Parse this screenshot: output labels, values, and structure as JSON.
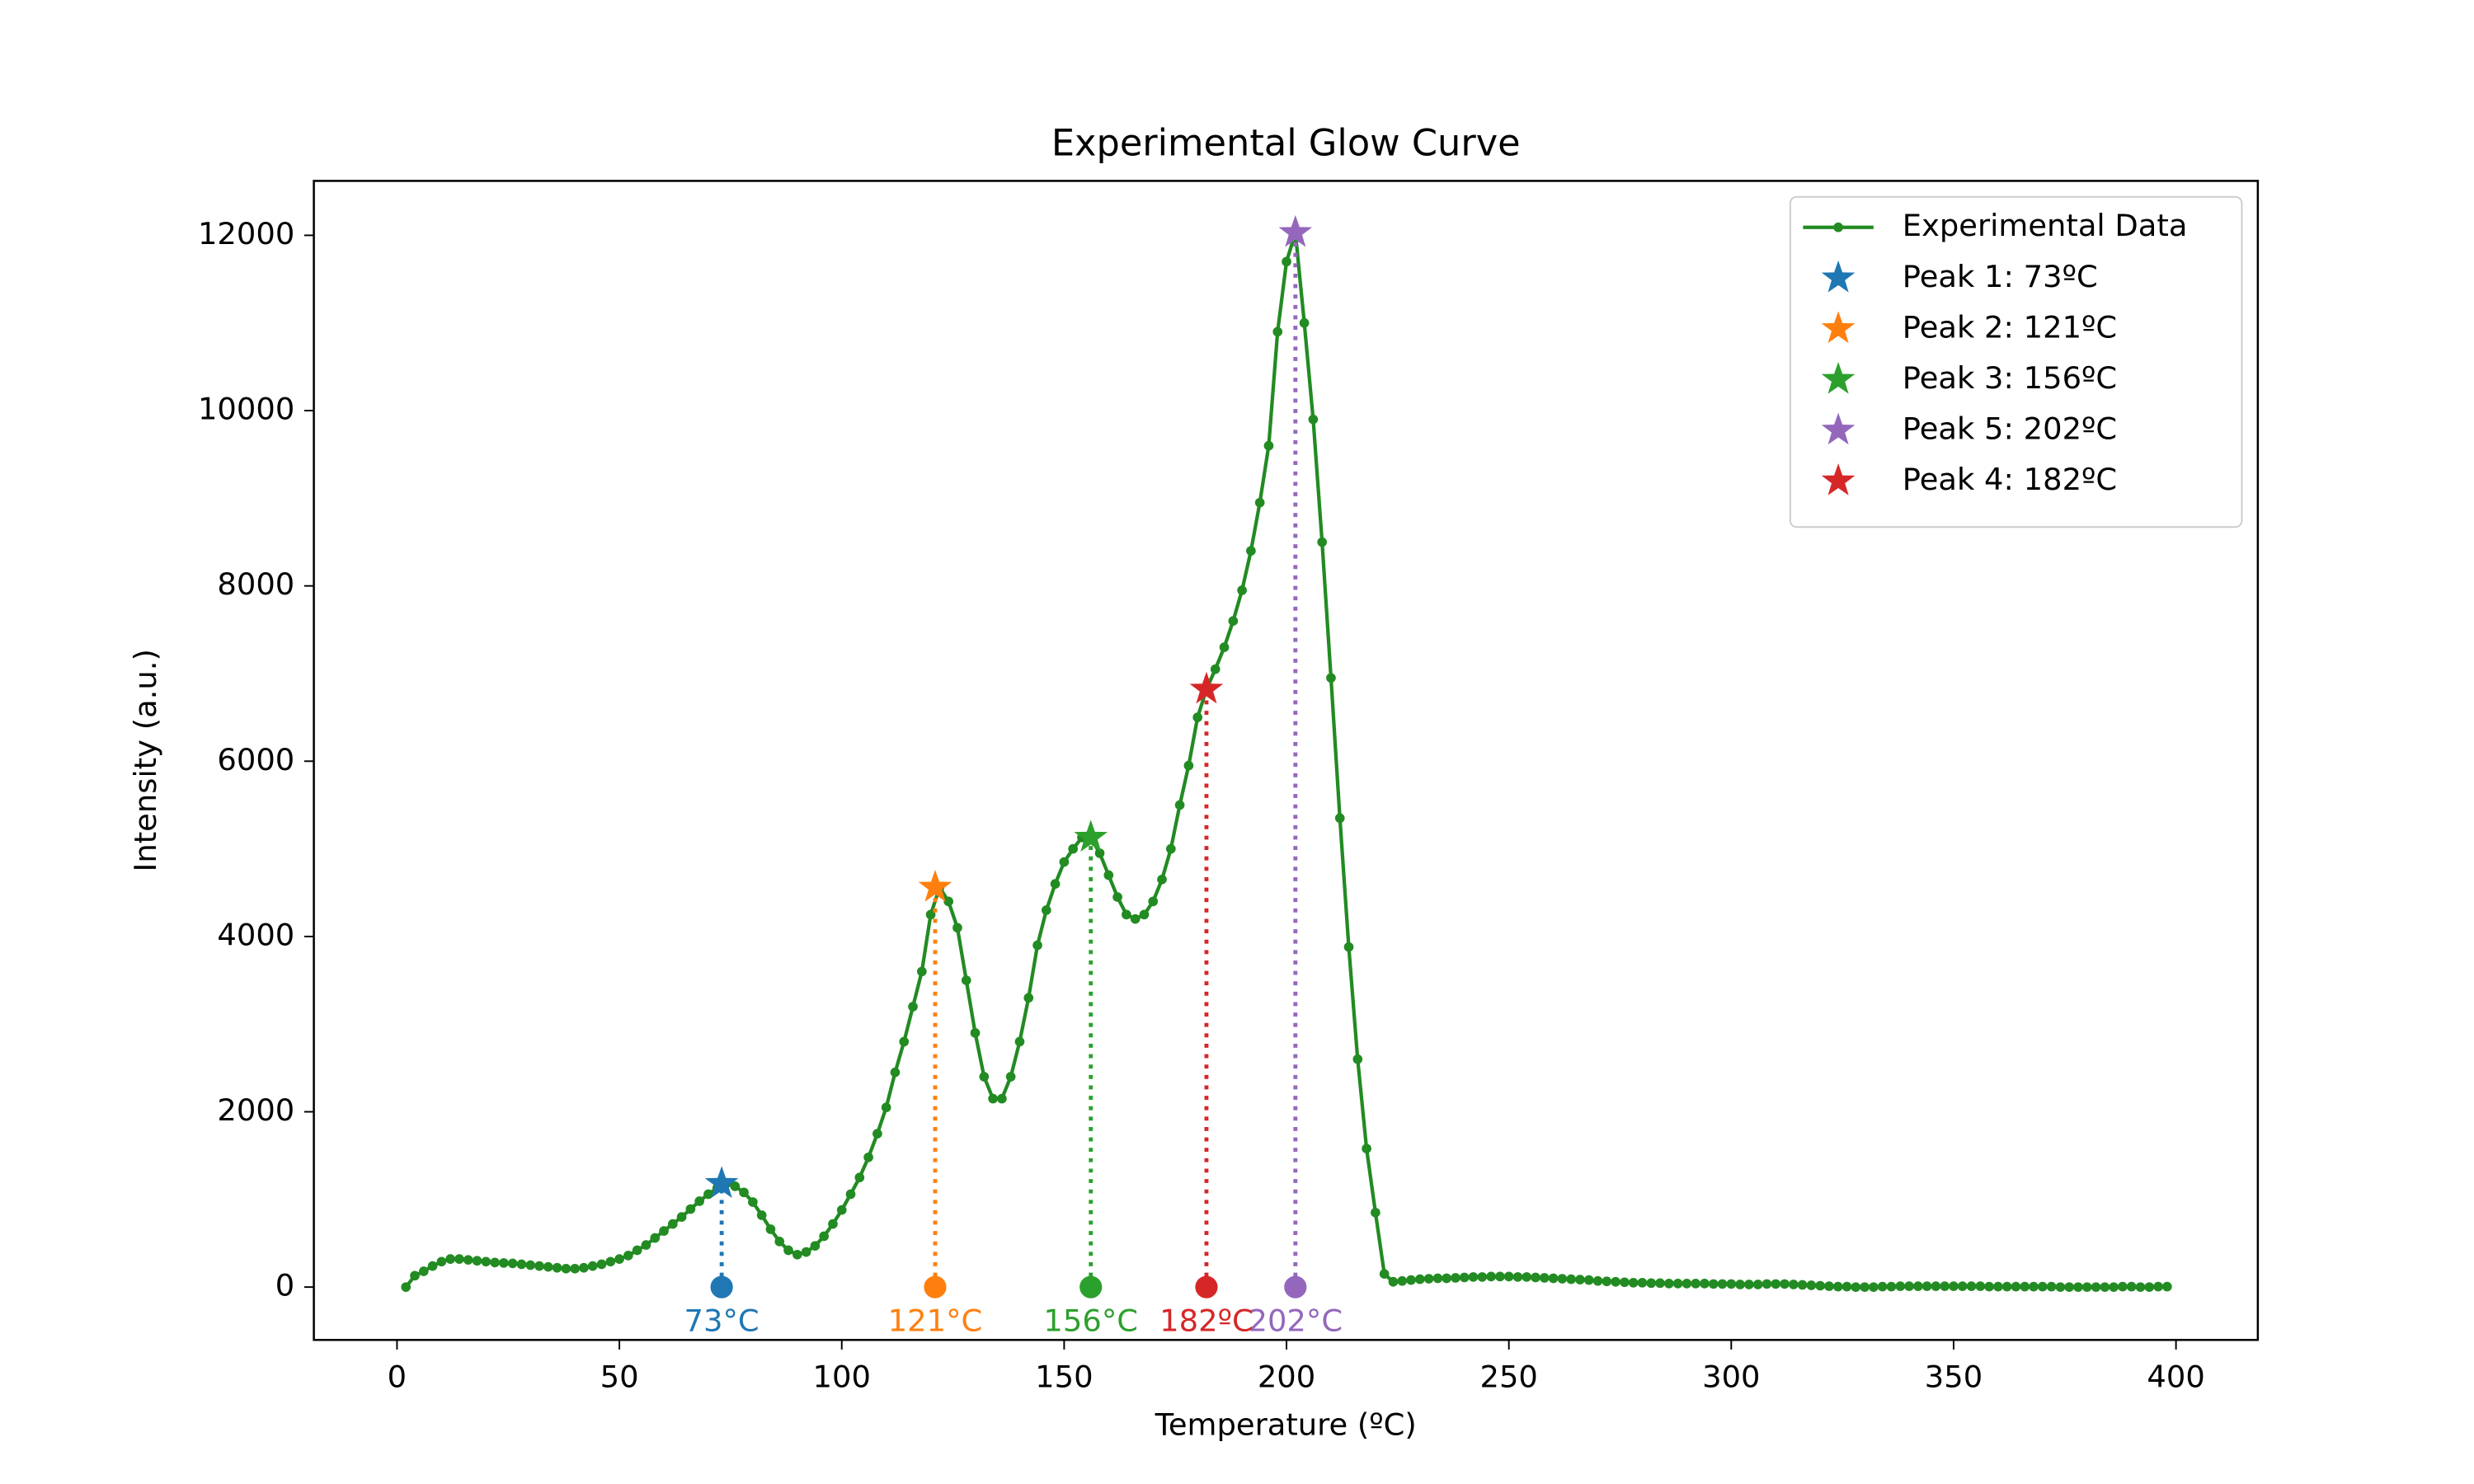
{
  "chart_data": {
    "type": "line",
    "title": "Experimental Glow Curve",
    "x_label": "Temperature (ºC)",
    "y_label": "Intensity (a.u.)",
    "xlim": [
      -18.7,
      418.4
    ],
    "ylim": [
      -603,
      12621
    ],
    "xticks": [
      0,
      50,
      100,
      150,
      200,
      250,
      300,
      350,
      400
    ],
    "yticks": [
      0,
      2000,
      4000,
      6000,
      8000,
      10000,
      12000
    ],
    "legend": "upper right",
    "series": [
      {
        "name": "Experimental Data",
        "color": "#228b22",
        "x": [
          2,
          4,
          6,
          8,
          10,
          12,
          14,
          16,
          18,
          20,
          22,
          24,
          26,
          28,
          30,
          32,
          34,
          36,
          38,
          40,
          42,
          44,
          46,
          48,
          50,
          52,
          54,
          56,
          58,
          60,
          62,
          64,
          66,
          68,
          70,
          72,
          74,
          76,
          78,
          80,
          82,
          84,
          86,
          88,
          90,
          92,
          94,
          96,
          98,
          100,
          102,
          104,
          106,
          108,
          110,
          112,
          114,
          116,
          118,
          120,
          122,
          124,
          126,
          128,
          130,
          132,
          134,
          136,
          138,
          140,
          142,
          144,
          146,
          148,
          150,
          152,
          154,
          156,
          158,
          160,
          162,
          164,
          166,
          168,
          170,
          172,
          174,
          176,
          178,
          180,
          182,
          184,
          186,
          188,
          190,
          192,
          194,
          196,
          198,
          200,
          202,
          204,
          206,
          208,
          210,
          212,
          214,
          216,
          218,
          220,
          222,
          224,
          226,
          228,
          230,
          232,
          234,
          236,
          238,
          240,
          242,
          244,
          246,
          248,
          250,
          252,
          254,
          256,
          258,
          260,
          262,
          264,
          266,
          268,
          270,
          272,
          274,
          276,
          278,
          280,
          282,
          284,
          286,
          288,
          290,
          292,
          294,
          296,
          298,
          300,
          302,
          304,
          306,
          308,
          310,
          312,
          314,
          316,
          318,
          320,
          322,
          324,
          326,
          328,
          330,
          332,
          334,
          336,
          338,
          340,
          342,
          344,
          346,
          348,
          350,
          352,
          354,
          356,
          358,
          360,
          362,
          364,
          366,
          368,
          370,
          372,
          374,
          376,
          378,
          380,
          382,
          384,
          386,
          388,
          390,
          392,
          394,
          396,
          398
        ],
        "values": [
          0,
          130,
          180,
          240,
          290,
          320,
          320,
          310,
          300,
          290,
          280,
          275,
          270,
          260,
          250,
          240,
          230,
          220,
          210,
          210,
          220,
          240,
          260,
          290,
          320,
          360,
          420,
          480,
          560,
          640,
          720,
          800,
          890,
          980,
          1060,
          1130,
          1180,
          1150,
          1080,
          970,
          820,
          660,
          520,
          420,
          370,
          400,
          470,
          580,
          720,
          880,
          1060,
          1250,
          1480,
          1750,
          2050,
          2450,
          2800,
          3200,
          3600,
          4250,
          4560,
          4400,
          4100,
          3500,
          2900,
          2400,
          2150,
          2150,
          2400,
          2800,
          3300,
          3900,
          4300,
          4600,
          4850,
          5000,
          5130,
          5130,
          4950,
          4700,
          4450,
          4250,
          4200,
          4250,
          4400,
          4650,
          5000,
          5500,
          5950,
          6500,
          6820,
          7050,
          7300,
          7600,
          7950,
          8400,
          8950,
          9600,
          10900,
          11700,
          12030,
          11000,
          9900,
          8500,
          6950,
          5350,
          3880,
          2600,
          1580,
          850,
          150,
          60,
          70,
          80,
          90,
          95,
          100,
          100,
          105,
          110,
          115,
          115,
          120,
          120,
          120,
          115,
          115,
          110,
          105,
          100,
          95,
          90,
          85,
          80,
          70,
          65,
          60,
          55,
          50,
          50,
          45,
          45,
          40,
          40,
          40,
          40,
          40,
          35,
          35,
          35,
          30,
          30,
          30,
          35,
          35,
          35,
          30,
          25,
          20,
          15,
          10,
          5,
          5,
          0,
          0,
          0,
          5,
          5,
          10,
          10,
          10,
          10,
          10,
          10,
          10,
          10,
          10,
          10,
          5,
          5,
          5,
          5,
          5,
          5,
          5,
          5,
          0,
          0,
          0,
          0,
          0,
          0,
          0,
          5,
          5,
          0,
          0,
          5,
          5
        ]
      }
    ],
    "peaks": [
      {
        "name": "Peak 1: 73ºC",
        "label": "73°C",
        "x": 73,
        "y": 1180,
        "color": "#1f77b4"
      },
      {
        "name": "Peak 2: 121ºC",
        "label": "121°C",
        "x": 121,
        "y": 4560,
        "color": "#ff7f0e"
      },
      {
        "name": "Peak 3: 156ºC",
        "label": "156°C",
        "x": 156,
        "y": 5130,
        "color": "#2ca02c"
      },
      {
        "name": "Peak 5: 202ºC",
        "label": "202°C",
        "x": 202,
        "y": 12030,
        "color": "#9467bd"
      },
      {
        "name": "Peak 4: 182ºC",
        "label": "182ºC",
        "x": 182,
        "y": 6820,
        "color": "#d62728"
      }
    ]
  }
}
